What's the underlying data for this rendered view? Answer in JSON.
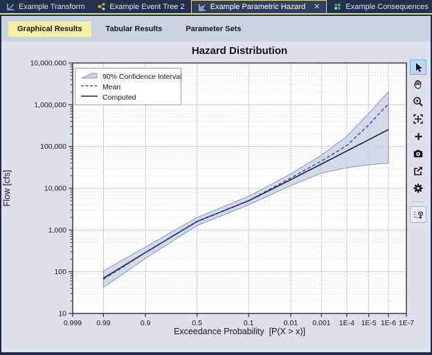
{
  "window": {
    "close_glyph": "✕",
    "tabs": [
      {
        "label": "Example Transform",
        "icon": "transform-icon",
        "active": false
      },
      {
        "label": "Example Event Tree 2",
        "icon": "event-tree-icon",
        "active": false
      },
      {
        "label": "Example Parametric Hazard",
        "icon": "parametric-hazard-icon",
        "active": true
      },
      {
        "label": "Example Consequences",
        "icon": "consequences-icon",
        "active": false
      }
    ],
    "tab_overflow_icon": "tab-list-icon"
  },
  "subtabs": [
    {
      "label": "Graphical Results",
      "active": true
    },
    {
      "label": "Tabular Results",
      "active": false
    },
    {
      "label": "Parameter Sets",
      "active": false
    }
  ],
  "toolbar": {
    "tools": [
      {
        "icon": "pointer-arrow-icon",
        "selected": true
      },
      {
        "icon": "pan-hand-icon",
        "selected": false
      },
      {
        "icon": "zoom-in-icon",
        "selected": false
      },
      {
        "icon": "zoom-extents-icon",
        "selected": false
      },
      {
        "icon": "add-crosshair-icon",
        "selected": false
      },
      {
        "icon": "camera-icon",
        "selected": false
      },
      {
        "icon": "export-icon",
        "selected": false
      },
      {
        "icon": "settings-gear-icon",
        "selected": false
      },
      {
        "icon": "select-data-icon",
        "selected": false
      }
    ]
  },
  "colors": {
    "accent_yellow": "#e9dc8a",
    "subtab_active": "#f7f0a3",
    "tabbar_bg": "#24314b",
    "content_bg": "#dce1ec",
    "band_fill": "#cbd3e5",
    "band_edge": "#8793bd",
    "mean_line": "#3a4fc4",
    "computed_line": "#222222",
    "selected_tool_bg": "#bcd8f4"
  },
  "chart_data": {
    "type": "line",
    "title": "Hazard Distribution",
    "xlabel": "Exceedance Probability  [P(X > x)]",
    "ylabel": "Flow [cfs]",
    "x_scale": "normal-probability",
    "y_scale": "log",
    "x_ticks": [
      "0.999",
      "0.99",
      "0.9",
      "0.5",
      "0.1",
      "0.01",
      "0.001",
      "1E-4",
      "1E-5",
      "1E-6",
      "1E-7"
    ],
    "x_tick_values": [
      0.999,
      0.99,
      0.9,
      0.5,
      0.1,
      0.01,
      0.001,
      0.0001,
      1e-05,
      1e-06,
      1e-07
    ],
    "y_ticks": [
      "10",
      "100",
      "1,000",
      "10,000",
      "100,000",
      "1,000,000",
      "10,000,000"
    ],
    "y_range": [
      10,
      10000000
    ],
    "grid": true,
    "legend_position": "top-left",
    "legend": [
      "90% Confidence Interval",
      "Mean",
      "Computed"
    ],
    "probabilities": [
      0.99,
      0.9,
      0.5,
      0.1,
      0.01,
      0.001,
      0.0001,
      1e-05,
      1e-06
    ],
    "series": [
      {
        "name": "Computed",
        "role": "computed",
        "values": [
          70,
          290,
          1600,
          5000,
          16000,
          38000,
          78000,
          145000,
          255000
        ]
      },
      {
        "name": "Mean",
        "role": "mean",
        "values": [
          66,
          285,
          1580,
          5100,
          17500,
          45000,
          105000,
          330000,
          1050000
        ]
      },
      {
        "name": "90% CI upper",
        "role": "ci_upper",
        "values": [
          105,
          390,
          2000,
          6400,
          22000,
          62000,
          175000,
          620000,
          2050000
        ]
      },
      {
        "name": "90% CI lower",
        "role": "ci_lower",
        "values": [
          42,
          210,
          1280,
          4000,
          11500,
          23000,
          31000,
          36500,
          40000
        ]
      }
    ]
  }
}
